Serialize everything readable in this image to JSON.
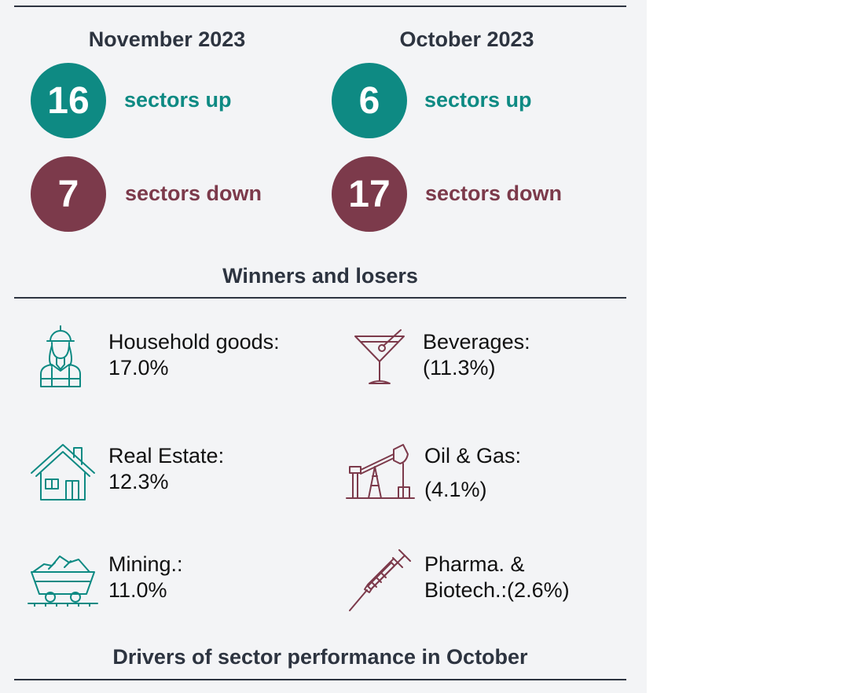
{
  "months": [
    {
      "title": "November 2023",
      "up_count": "16",
      "up_label": "sectors up",
      "down_count": "7",
      "down_label": "sectors down"
    },
    {
      "title": "October 2023",
      "up_count": "6",
      "up_label": "sectors up",
      "down_count": "17",
      "down_label": "sectors down"
    }
  ],
  "winners_losers_title": "Winners and losers",
  "winners": [
    {
      "line1": "Household goods:",
      "line2": "17.0%",
      "icon": "worker-icon"
    },
    {
      "line1": "Real Estate:",
      "line2": "12.3%",
      "icon": "house-icon"
    },
    {
      "line1": "Mining.:",
      "line2": "11.0%",
      "icon": "mine-cart-icon"
    }
  ],
  "losers": [
    {
      "line1": "Beverages:",
      "line2": "(11.3%)",
      "icon": "cocktail-icon"
    },
    {
      "line1": "Oil & Gas:",
      "line2": "(4.1%)",
      "icon": "oil-pump-icon"
    },
    {
      "line1": "Pharma. &",
      "line2": "Biotech.:(2.6%)",
      "icon": "syringe-icon"
    }
  ],
  "drivers_title": "Drivers of sector performance in October",
  "colors": {
    "up": "#0e8a83",
    "down": "#7c3a4b",
    "text": "#2d3440",
    "panel_bg": "#f3f4f6"
  }
}
